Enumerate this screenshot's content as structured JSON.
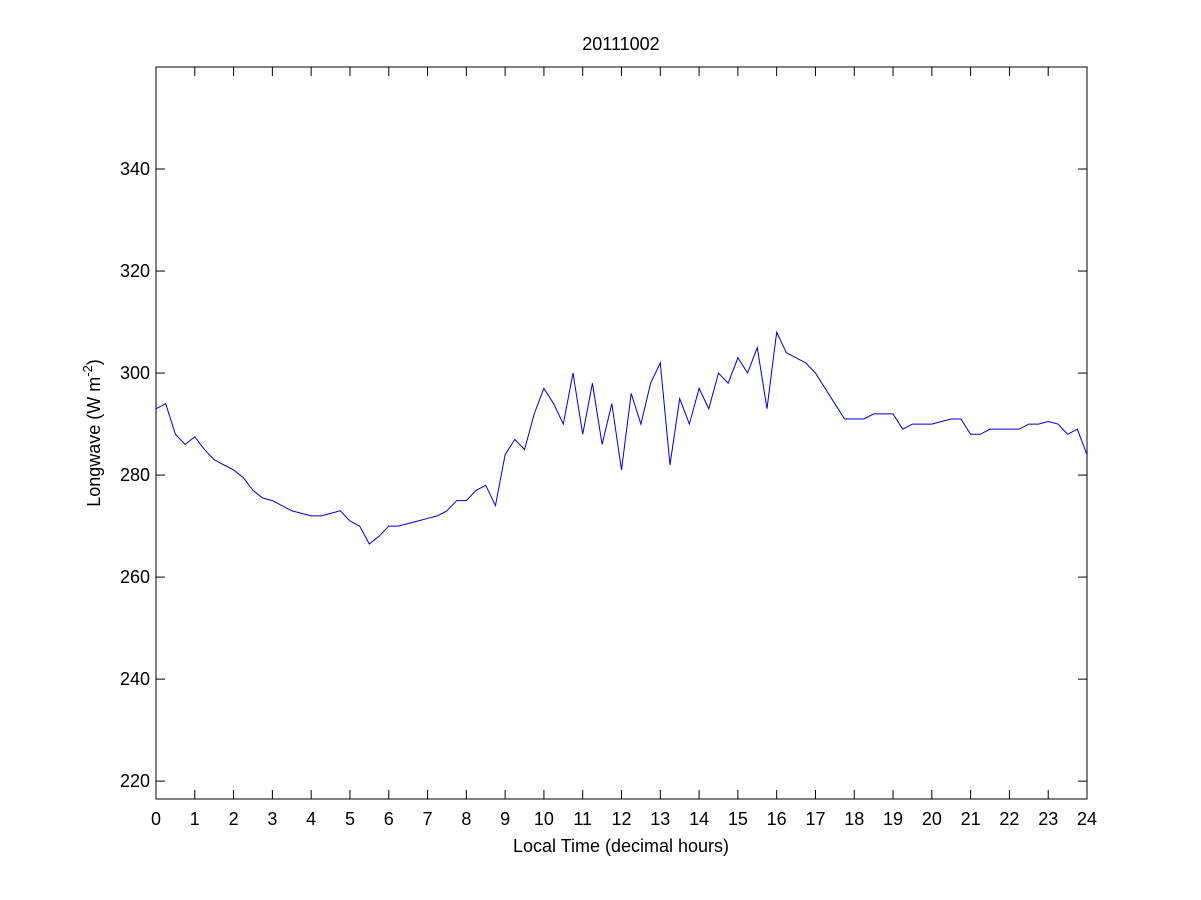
{
  "chart_data": {
    "type": "line",
    "title": "20111002",
    "xlabel": "Local Time (decimal hours)",
    "ylabel": {
      "text": "Longwave (W m",
      "superscript": "-2",
      "suffix": ")"
    },
    "color": "#0000cc",
    "x": [
      0,
      0.25,
      0.5,
      0.75,
      1,
      1.25,
      1.5,
      1.75,
      2,
      2.25,
      2.5,
      2.75,
      3,
      3.25,
      3.5,
      3.75,
      4,
      4.25,
      4.5,
      4.75,
      5,
      5.25,
      5.5,
      5.75,
      6,
      6.25,
      6.5,
      6.75,
      7,
      7.25,
      7.5,
      7.75,
      8,
      8.25,
      8.5,
      8.75,
      9,
      9.25,
      9.5,
      9.75,
      10,
      10.25,
      10.5,
      10.75,
      11,
      11.25,
      11.5,
      11.75,
      12,
      12.25,
      12.5,
      12.75,
      13,
      13.25,
      13.5,
      13.75,
      14,
      14.25,
      14.5,
      14.75,
      15,
      15.25,
      15.5,
      15.75,
      16,
      16.25,
      16.5,
      16.75,
      17,
      17.25,
      17.5,
      17.75,
      18,
      18.25,
      18.5,
      18.75,
      19,
      19.25,
      19.5,
      19.75,
      20,
      20.25,
      20.5,
      20.75,
      21,
      21.25,
      21.5,
      21.75,
      22,
      22.25,
      22.5,
      22.75,
      23,
      23.25,
      23.5,
      23.75,
      24
    ],
    "values": [
      293,
      294,
      288,
      286,
      287.5,
      285,
      283,
      282,
      281,
      279.5,
      277,
      275.5,
      275,
      274,
      273,
      272.5,
      272,
      272,
      272.5,
      273,
      271,
      270,
      266.5,
      268,
      270,
      270,
      270.5,
      271,
      271.5,
      272,
      273,
      275,
      275,
      277,
      278,
      274,
      284,
      287,
      285,
      292,
      297,
      294,
      290,
      300,
      288,
      298,
      286,
      294,
      281,
      296,
      290,
      298,
      302,
      282,
      295,
      290,
      297,
      293,
      300,
      298,
      303,
      300,
      305,
      293,
      308,
      304,
      303,
      302,
      300,
      297,
      294,
      291,
      291,
      291,
      292,
      292,
      292,
      289,
      290,
      290,
      290,
      290.5,
      291,
      291,
      288,
      288,
      289,
      289,
      289,
      289,
      290,
      290,
      290.5,
      290,
      288,
      289,
      284
    ],
    "xlim": [
      0,
      24
    ],
    "xticks": [
      0,
      1,
      2,
      3,
      4,
      5,
      6,
      7,
      8,
      9,
      10,
      11,
      12,
      13,
      14,
      15,
      16,
      17,
      18,
      19,
      20,
      21,
      22,
      23,
      24
    ],
    "ylim": [
      216.5,
      360
    ],
    "yticks": [
      220,
      240,
      260,
      280,
      300,
      320,
      340
    ]
  }
}
